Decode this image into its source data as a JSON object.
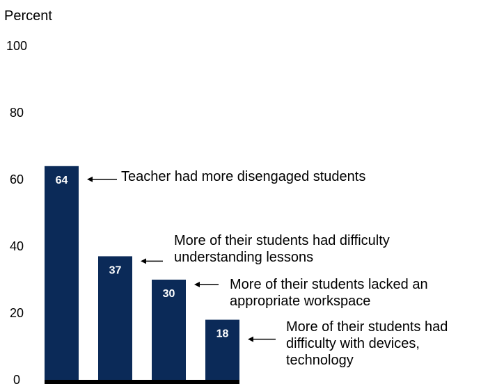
{
  "chart_data": {
    "type": "bar",
    "title": "",
    "xlabel": "",
    "ylabel": "Percent",
    "ylim": [
      0,
      100
    ],
    "yticks": [
      0,
      20,
      40,
      60,
      80,
      100
    ],
    "grid": false,
    "legend": "none",
    "bar_color": "#0b2a58",
    "axis_color": "#000000",
    "categories": [
      "Teacher had more disengaged students",
      "More of their students had difficulty understanding lessons",
      "More of their students lacked an appropriate workspace",
      "More of their students had difficulty with devices, technology"
    ],
    "values": [
      64,
      37,
      30,
      18
    ],
    "annotations": [
      {
        "text": "Teacher had more disengaged students"
      },
      {
        "text": "More of their students had difficulty\nunderstanding lessons"
      },
      {
        "text": "More of their students lacked an\nappropriate workspace"
      },
      {
        "text": "More of their students had\ndifficulty with devices,\ntechnology"
      }
    ]
  }
}
